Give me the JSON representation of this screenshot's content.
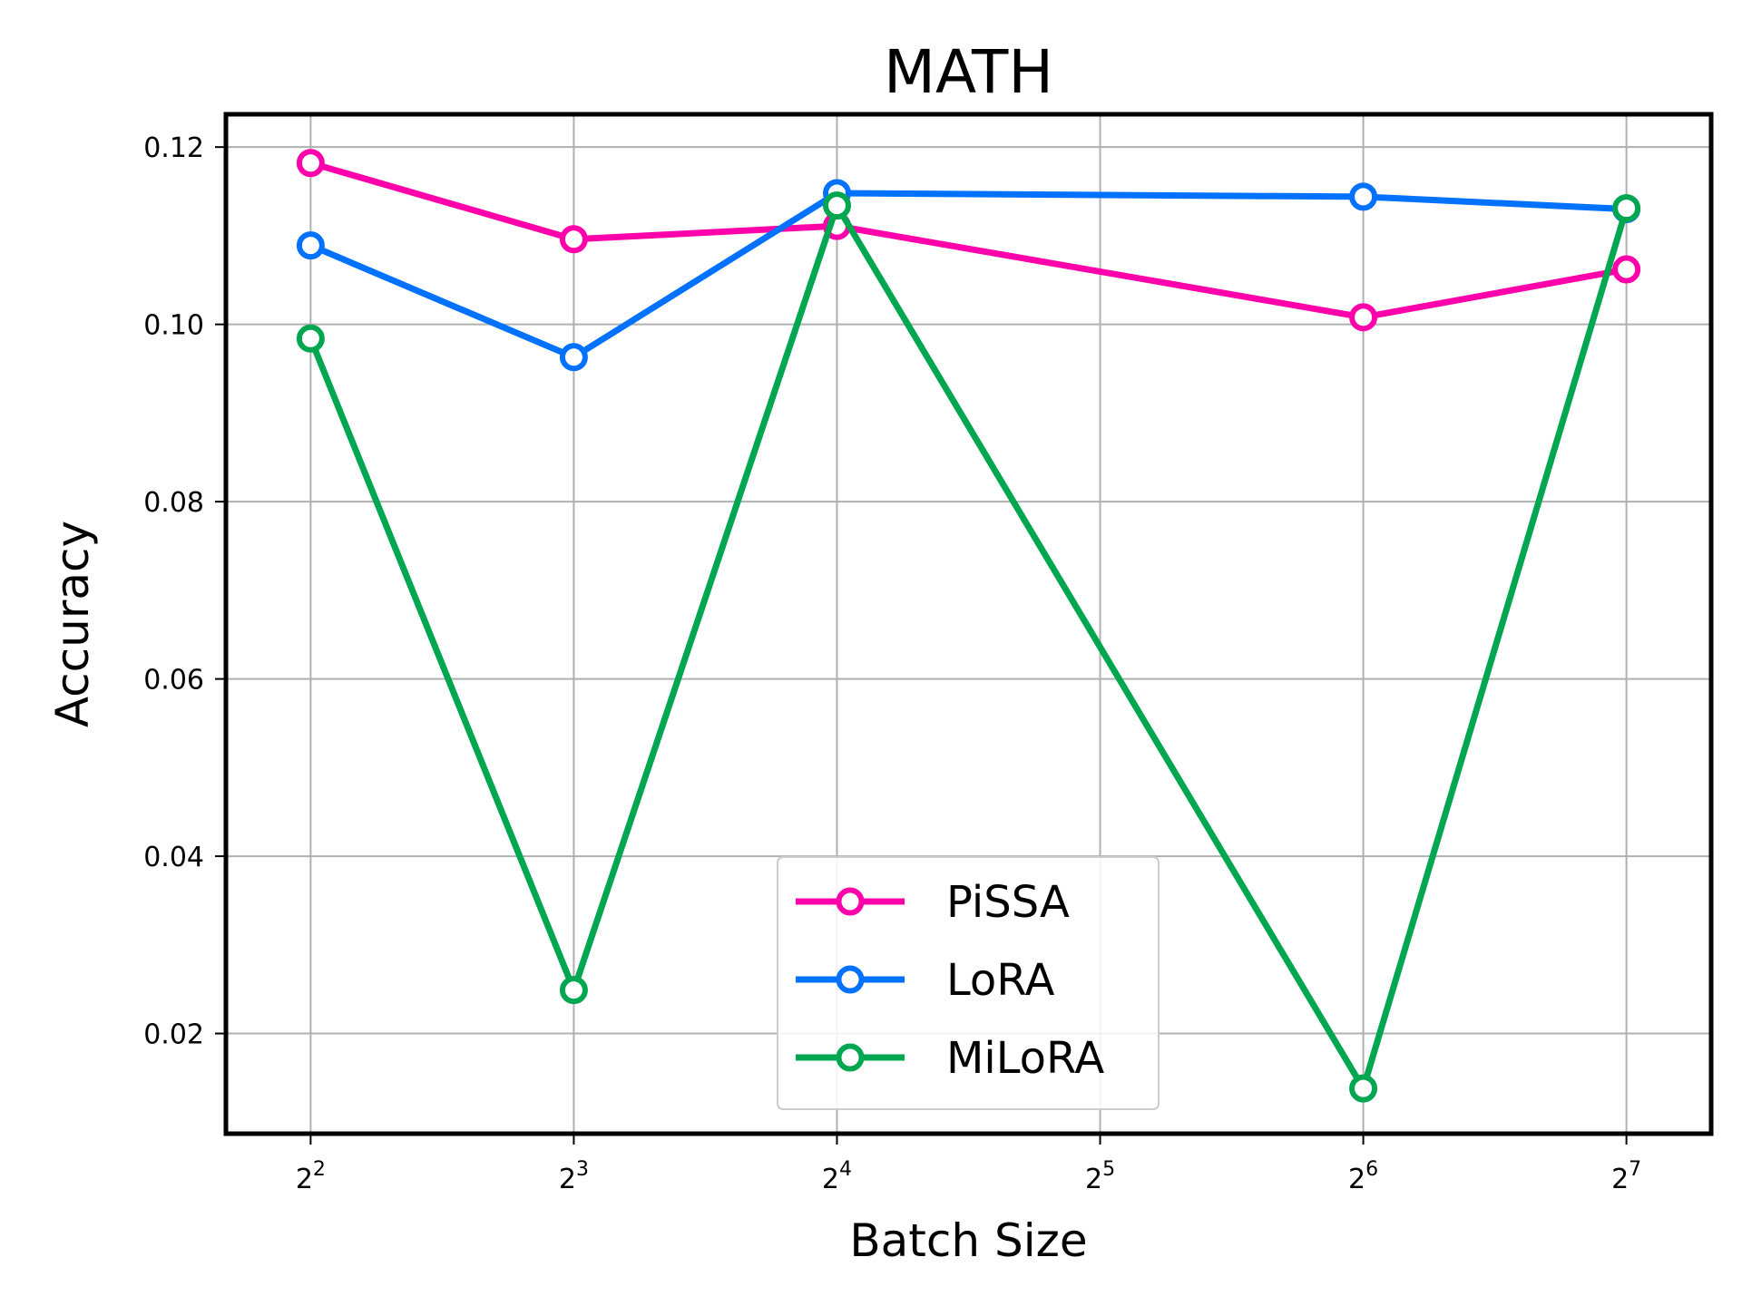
{
  "chart_data": {
    "type": "line",
    "title": "MATH",
    "xlabel": "Batch Size",
    "ylabel": "Accuracy",
    "x_scale": "log2",
    "x": [
      4,
      8,
      16,
      64,
      128
    ],
    "x_ticks": [
      {
        "value": 4,
        "base": "2",
        "exp": "2"
      },
      {
        "value": 8,
        "base": "2",
        "exp": "3"
      },
      {
        "value": 16,
        "base": "2",
        "exp": "4"
      },
      {
        "value": 32,
        "base": "2",
        "exp": "5"
      },
      {
        "value": 64,
        "base": "2",
        "exp": "6"
      },
      {
        "value": 128,
        "base": "2",
        "exp": "7"
      }
    ],
    "y_ticks": [
      "0.02",
      "0.04",
      "0.06",
      "0.08",
      "0.10",
      "0.12"
    ],
    "ylim": [
      0.0087,
      0.1237
    ],
    "grid": true,
    "legend_position": "bottom-center",
    "series": [
      {
        "name": "PiSSA",
        "color": "#ff00aa",
        "values": [
          0.1182,
          0.1096,
          0.1111,
          0.1008,
          0.1062
        ]
      },
      {
        "name": "LoRA",
        "color": "#0072ff",
        "values": [
          0.1089,
          0.0963,
          0.1148,
          0.1144,
          0.113
        ]
      },
      {
        "name": "MiLoRA",
        "color": "#00a650",
        "values": [
          0.0984,
          0.0249,
          0.1134,
          0.0138,
          0.1131
        ]
      }
    ]
  }
}
